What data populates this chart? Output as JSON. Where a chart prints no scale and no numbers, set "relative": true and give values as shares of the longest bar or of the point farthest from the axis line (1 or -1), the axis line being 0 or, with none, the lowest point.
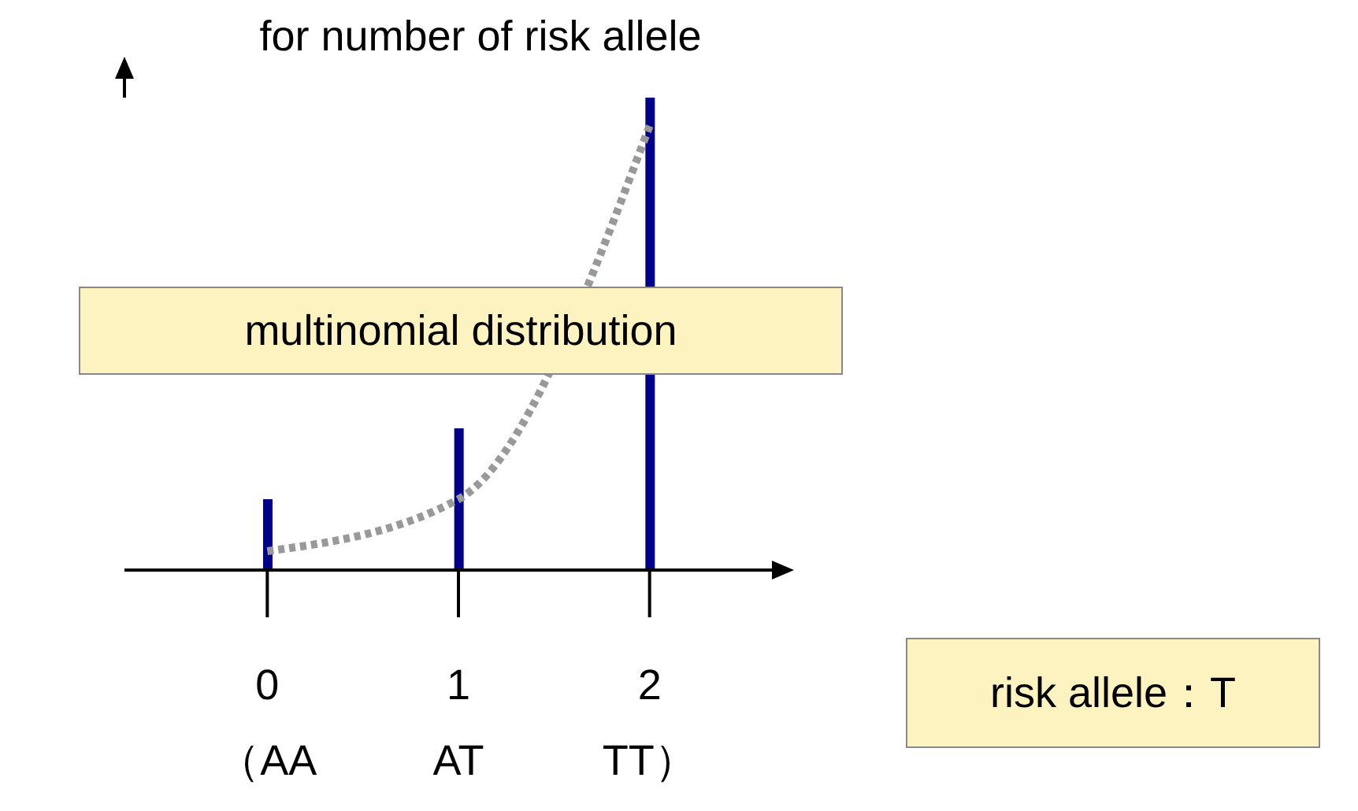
{
  "chart_data": {
    "type": "bar",
    "title": "for number of risk allele",
    "categories": [
      "0\n（AA",
      "1\nAT",
      "2\nTT）"
    ],
    "relative": true,
    "marker": "none",
    "grid": false,
    "legend": false,
    "series": [
      {
        "color": "#00008b",
        "values": [
          0.15,
          0.3,
          1
        ]
      },
      {
        "type": "line",
        "color": "#999999",
        "line_style": "dotted",
        "values": [
          0.04,
          0.15,
          0.94
        ]
      }
    ],
    "annotations": [
      "multinomial distribution",
      "risk allele：T"
    ]
  }
}
